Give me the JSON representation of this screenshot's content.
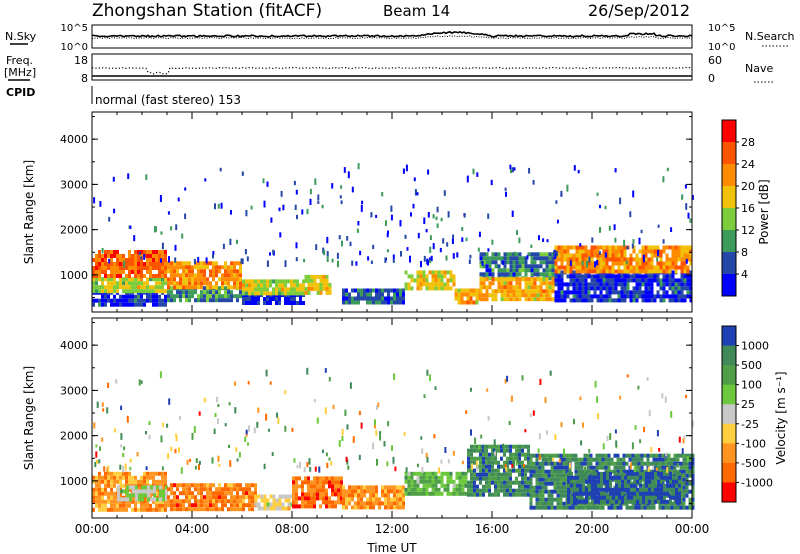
{
  "header": {
    "title": "Zhongshan Station (fitACF)",
    "beam": "Beam 14",
    "date": "26/Sep/2012"
  },
  "top_panels": {
    "nsky_label": "N.Sky",
    "nsearch_label": "N.Search",
    "nsky_ticks": [
      "10^5",
      "10^0"
    ],
    "nsearch_ticks": [
      "10^5",
      "10^0"
    ],
    "freq_label_1": "Freq.",
    "freq_label_2": "[MHz]",
    "freq_ticks": [
      "18",
      "8"
    ],
    "nave_label": "Nave",
    "nave_ticks": [
      "60",
      "0"
    ],
    "cpid_label": "CPID",
    "cpid_text": "normal (fast stereo) 153"
  },
  "chart_data": [
    {
      "type": "heatmap",
      "name": "power",
      "ylabel": "Slant Range [km]",
      "xlabel": "",
      "yticks": [
        1000,
        2000,
        3000,
        4000
      ],
      "ylim": [
        180,
        4600
      ],
      "xlim": [
        0,
        24
      ],
      "colorbar_label": "Power [dB]",
      "colorbar_ticks": [
        "28",
        "24",
        "20",
        "16",
        "12",
        "8",
        "4"
      ],
      "colorbar_colors": [
        "#ff0000",
        "#ff5500",
        "#ff8c00",
        "#f2c20a",
        "#7ccd3c",
        "#3c9a5a",
        "#2548a8",
        "#0000ff"
      ],
      "regions": [
        {
          "t": [
            0.0,
            3.0
          ],
          "r": [
            350,
            650
          ],
          "level": 6.5
        },
        {
          "t": [
            0.0,
            3.0
          ],
          "r": [
            650,
            950
          ],
          "level": 3.5
        },
        {
          "t": [
            0.0,
            3.0
          ],
          "r": [
            950,
            1550
          ],
          "level": 1.2
        },
        {
          "t": [
            3.0,
            6.0
          ],
          "r": [
            450,
            750
          ],
          "level": 5.0
        },
        {
          "t": [
            3.0,
            6.0
          ],
          "r": [
            750,
            1300
          ],
          "level": 2.0
        },
        {
          "t": [
            6.0,
            8.5
          ],
          "r": [
            350,
            600
          ],
          "level": 6.8
        },
        {
          "t": [
            6.0,
            8.5
          ],
          "r": [
            600,
            900
          ],
          "level": 3.5
        },
        {
          "t": [
            8.5,
            9.5
          ],
          "r": [
            600,
            1000
          ],
          "level": 3.0
        },
        {
          "t": [
            10.0,
            12.5
          ],
          "r": [
            400,
            700
          ],
          "level": 6.0
        },
        {
          "t": [
            12.5,
            14.5
          ],
          "r": [
            700,
            1100
          ],
          "level": 3.2
        },
        {
          "t": [
            14.5,
            15.5
          ],
          "r": [
            400,
            700
          ],
          "level": 2.5
        },
        {
          "t": [
            15.5,
            18.5
          ],
          "r": [
            950,
            1500
          ],
          "level": 5.5
        },
        {
          "t": [
            15.5,
            18.5
          ],
          "r": [
            500,
            950
          ],
          "level": 2.5
        },
        {
          "t": [
            18.5,
            24.0
          ],
          "r": [
            450,
            1100
          ],
          "level": 6.5
        },
        {
          "t": [
            18.5,
            24.0
          ],
          "r": [
            1100,
            1650
          ],
          "level": 2.0
        }
      ]
    },
    {
      "type": "heatmap",
      "name": "velocity",
      "ylabel": "Slant Range [km]",
      "xlabel": "Time UT",
      "xticks": [
        "00:00",
        "04:00",
        "08:00",
        "12:00",
        "16:00",
        "20:00",
        "00:00"
      ],
      "yticks": [
        1000,
        2000,
        3000,
        4000
      ],
      "ylim": [
        180,
        4600
      ],
      "xlim": [
        0,
        24
      ],
      "colorbar_label": "Velocity [m s⁻¹]",
      "colorbar_ticks": [
        "1000",
        "500",
        "100",
        "25",
        "-25",
        "-100",
        "-500",
        "-1000"
      ],
      "colorbar_colors": [
        "#1f3fb4",
        "#3f8a58",
        "#4f9f48",
        "#6cc83c",
        "#c8c8c8",
        "#ffcf40",
        "#ff9420",
        "#ff6a00",
        "#ff0000"
      ],
      "regions": [
        {
          "t": [
            0.0,
            3.0
          ],
          "r": [
            350,
            1200
          ],
          "level": 6.0
        },
        {
          "t": [
            1.0,
            3.0
          ],
          "r": [
            600,
            900
          ],
          "level": 3.5
        },
        {
          "t": [
            3.0,
            6.5
          ],
          "r": [
            350,
            950
          ],
          "level": 6.5
        },
        {
          "t": [
            6.5,
            8.0
          ],
          "r": [
            350,
            700
          ],
          "level": 4.5
        },
        {
          "t": [
            8.0,
            10.0
          ],
          "r": [
            400,
            1100
          ],
          "level": 6.8
        },
        {
          "t": [
            10.0,
            12.5
          ],
          "r": [
            400,
            900
          ],
          "level": 6.0
        },
        {
          "t": [
            12.5,
            15.0
          ],
          "r": [
            700,
            1200
          ],
          "level": 2.5
        },
        {
          "t": [
            15.0,
            17.5
          ],
          "r": [
            700,
            1800
          ],
          "level": 1.2
        },
        {
          "t": [
            17.5,
            24.0
          ],
          "r": [
            400,
            1600
          ],
          "level": 1.0
        },
        {
          "t": [
            19.0,
            23.5
          ],
          "r": [
            500,
            1200
          ],
          "level": 0.3
        }
      ]
    }
  ]
}
